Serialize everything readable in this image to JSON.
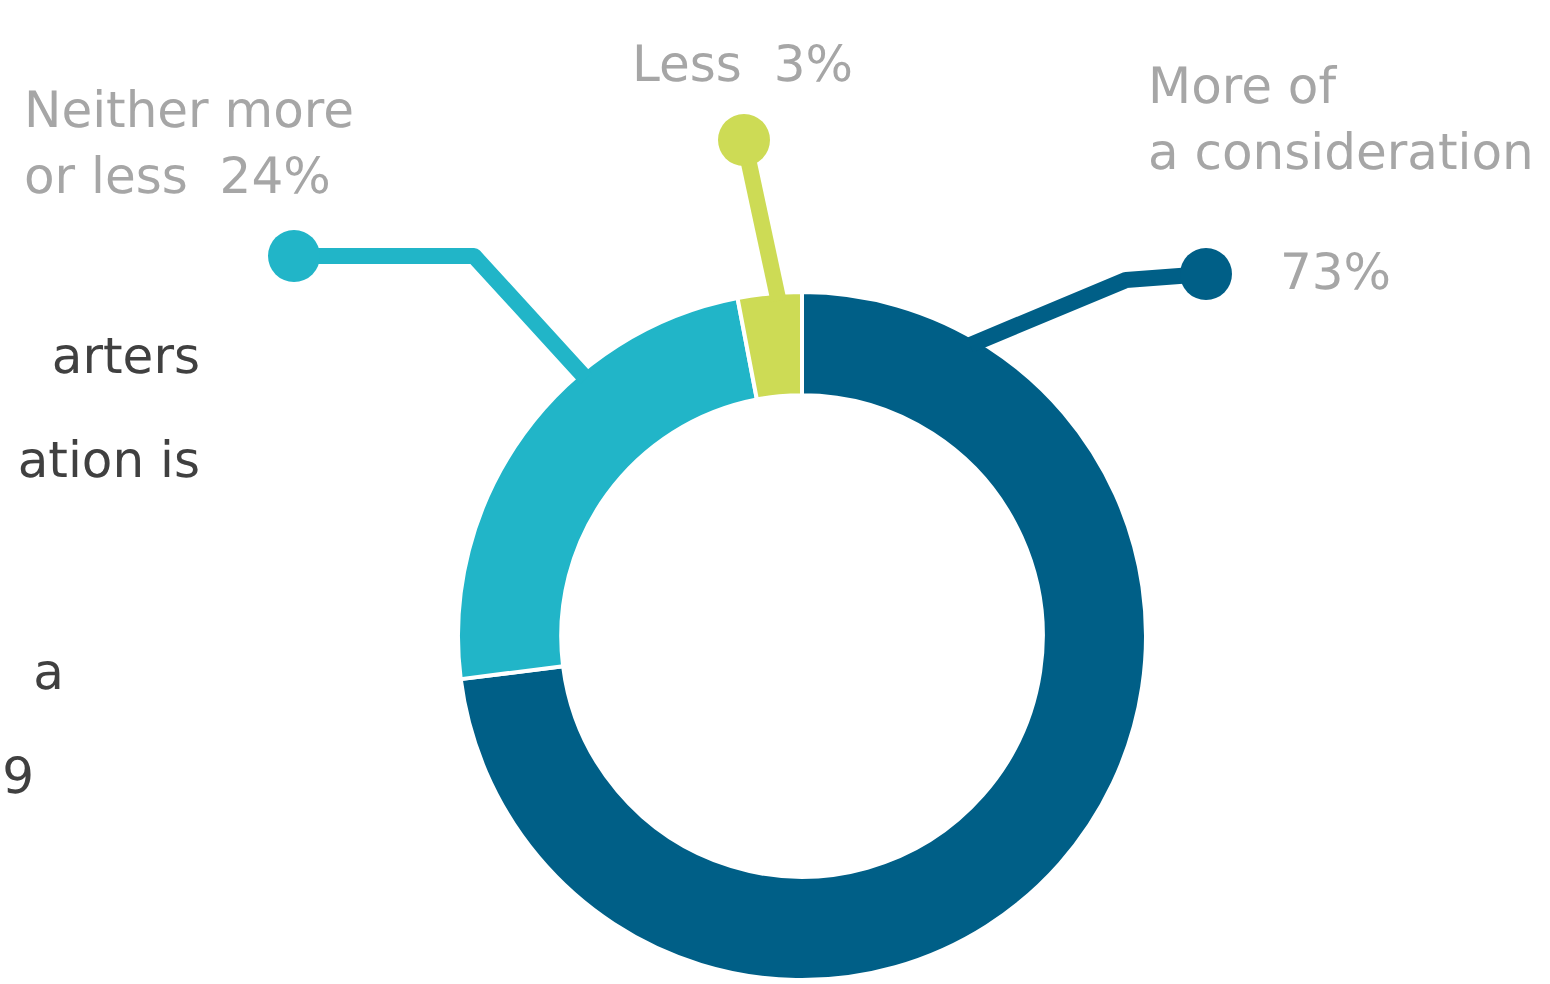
{
  "chart_data": {
    "type": "donut",
    "categories": [
      "More of a consideration",
      "Neither more or less",
      "Less"
    ],
    "values": [
      73,
      24,
      3
    ],
    "colors": [
      "#005f87",
      "#21b5c8",
      "#cddb55"
    ],
    "value_labels": [
      "73%",
      "24%",
      "3%"
    ],
    "annotations": [
      "arters",
      "ation is",
      "a",
      "9"
    ],
    "legend": false
  }
}
